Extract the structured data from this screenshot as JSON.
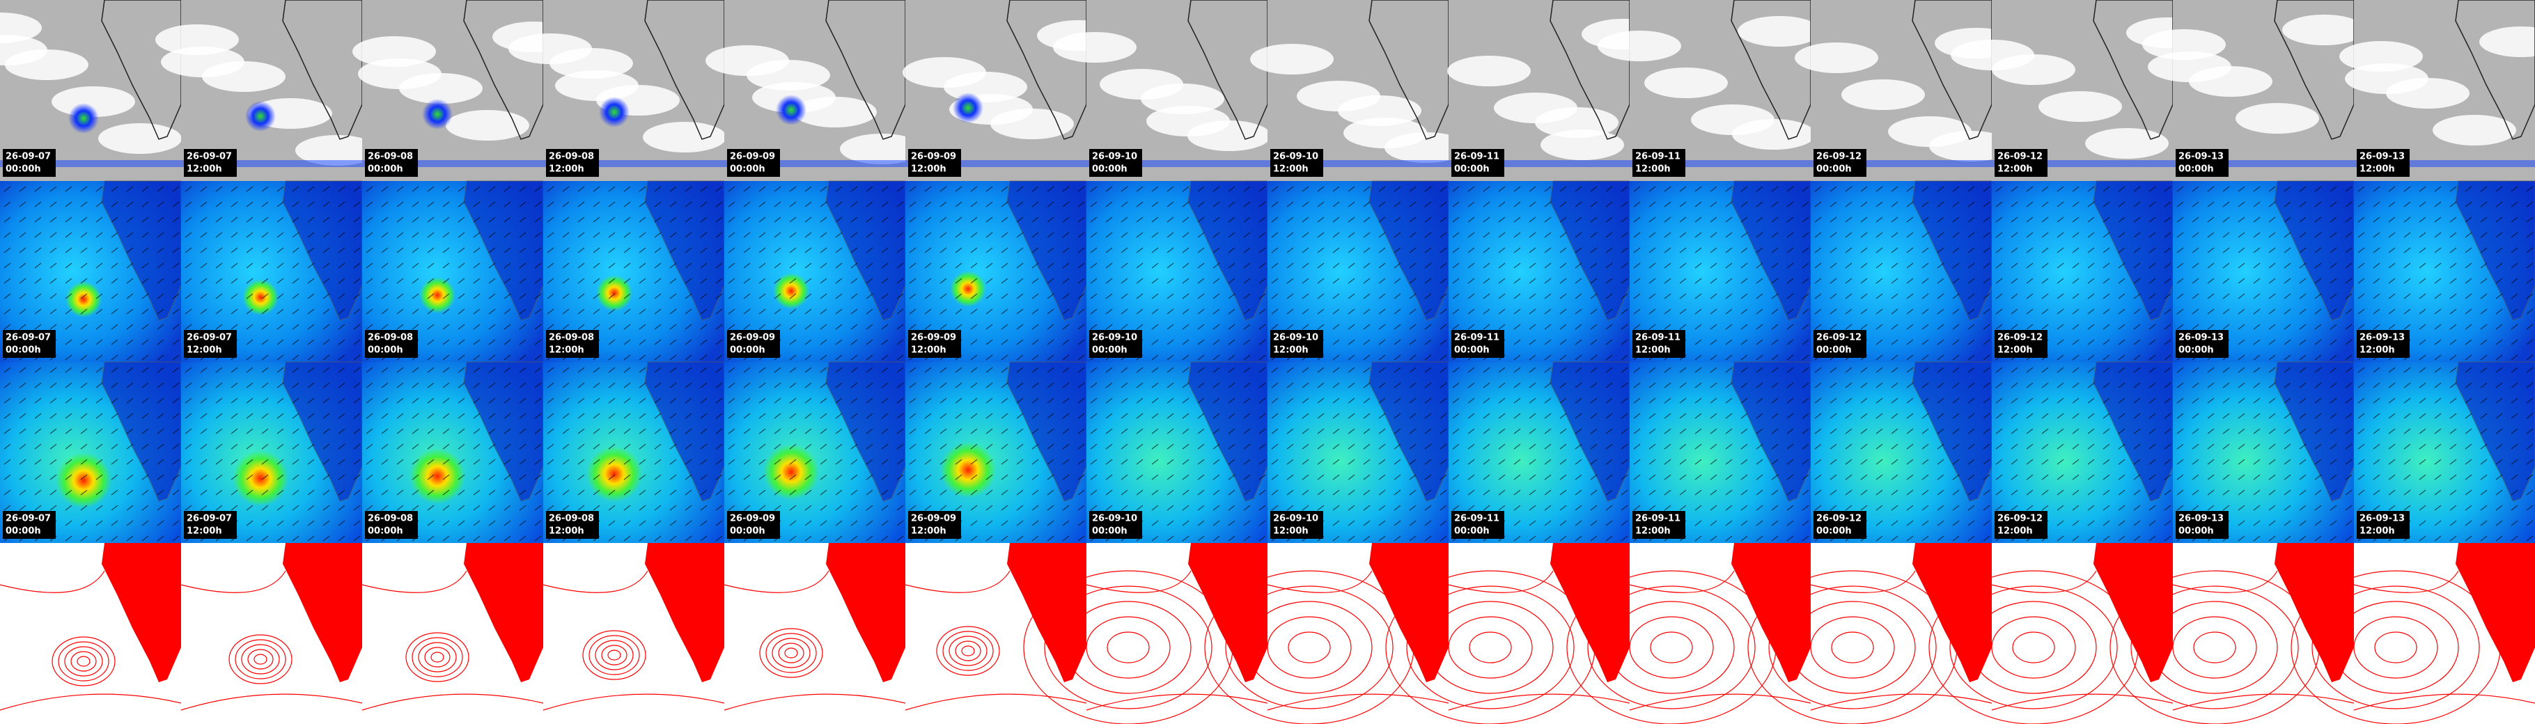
{
  "columns": [
    {
      "date": "26-09-07",
      "time": "00:00h"
    },
    {
      "date": "26-09-07",
      "time": "12:00h"
    },
    {
      "date": "26-09-08",
      "time": "00:00h"
    },
    {
      "date": "26-09-08",
      "time": "12:00h"
    },
    {
      "date": "26-09-09",
      "time": "00:00h"
    },
    {
      "date": "26-09-09",
      "time": "12:00h"
    },
    {
      "date": "26-09-10",
      "time": "00:00h"
    },
    {
      "date": "26-09-10",
      "time": "12:00h"
    },
    {
      "date": "26-09-11",
      "time": "00:00h"
    },
    {
      "date": "26-09-11",
      "time": "12:00h"
    },
    {
      "date": "26-09-12",
      "time": "00:00h"
    },
    {
      "date": "26-09-12",
      "time": "12:00h"
    },
    {
      "date": "26-09-13",
      "time": "00:00h"
    },
    {
      "date": "26-09-13",
      "time": "12:00h"
    }
  ]
}
